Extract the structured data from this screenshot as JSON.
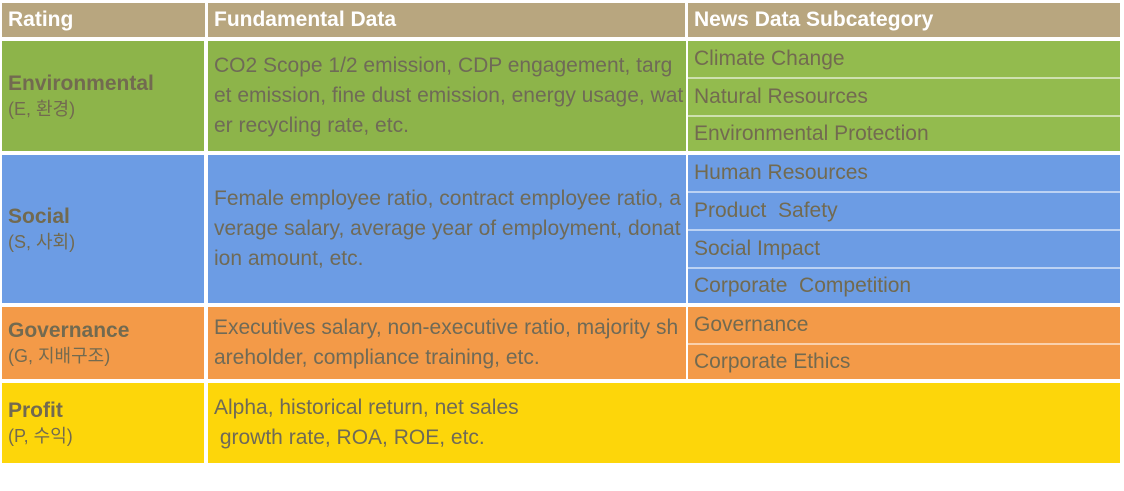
{
  "headers": {
    "rating": "Rating",
    "fundamental": "Fundamental Data",
    "news": "News Data Subcategory"
  },
  "rows": {
    "environmental": {
      "name": "Environmental",
      "sub": "(E, 환경)",
      "fundamental": "CO2 Scope 1/2 emission, CDP engagement, target emission, fine dust emission, energy usage, water recycling rate, etc.",
      "news": [
        "Climate Change",
        "Natural Resources",
        "Environmental Protection"
      ]
    },
    "social": {
      "name": "Social",
      "sub": "(S, 사회)",
      "fundamental": "Female employee ratio, contract employee ratio, average salary, average year of employment, donation amount, etc.",
      "news": [
        "Human Resources",
        "Product  Safety",
        "Social Impact",
        "Corporate  Competition"
      ]
    },
    "governance": {
      "name": "Governance",
      "sub": "(G, 지배구조)",
      "fundamental": "Executives salary, non-executive ratio, majority shareholder, compliance training, etc.",
      "news": [
        "Governance",
        "Corporate Ethics"
      ]
    },
    "profit": {
      "name": "Profit",
      "sub": "(P, 수익)",
      "fundamental_line1": "Alpha, historical return, net sales",
      "fundamental_line2": " growth rate, ROA, ROE, etc."
    }
  },
  "colors": {
    "header": "#b8a67f",
    "environmental": "#8db44a",
    "social": "#6c9ce4",
    "governance": "#f39a48",
    "profit": "#fdd60a"
  }
}
